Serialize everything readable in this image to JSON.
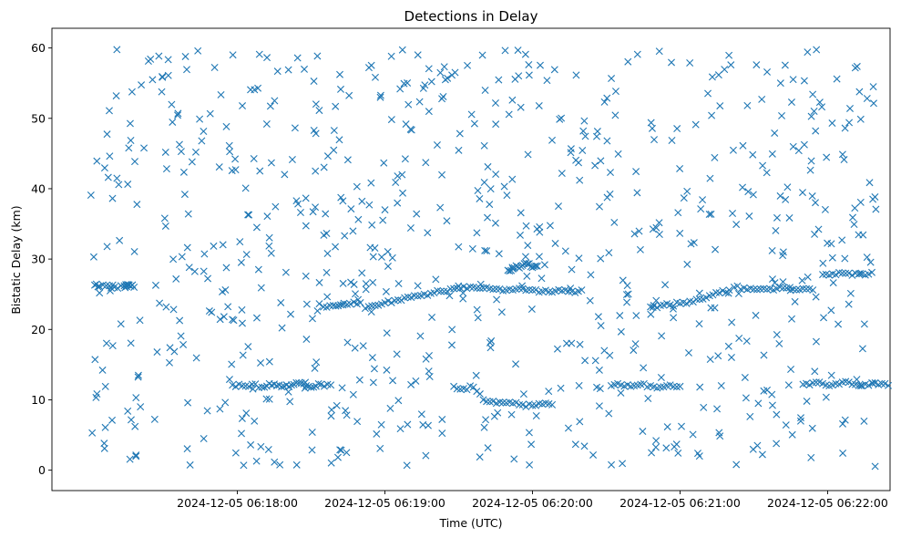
{
  "chart_data": {
    "type": "scatter",
    "title": "Detections in Delay",
    "xlabel": "Time (UTC)",
    "ylabel": "Bistatic Delay (km)",
    "marker": "x",
    "color": "#1f77b4",
    "x_axis_type": "datetime",
    "x_base_time": "2024-12-05 06:17:00",
    "xlim_seconds": [
      -15.4,
      325.4
    ],
    "ylim": [
      -2.9,
      62.8
    ],
    "y_ticks": [
      0,
      10,
      20,
      30,
      40,
      50,
      60
    ],
    "y_tick_labels": [
      "0",
      "10",
      "20",
      "30",
      "40",
      "50",
      "60"
    ],
    "x_ticks_seconds": [
      60,
      120,
      180,
      240,
      300
    ],
    "x_tick_labels": [
      "2024-12-05 06:18:00",
      "2024-12-05 06:19:00",
      "2024-12-05 06:20:00",
      "2024-12-05 06:21:00",
      "2024-12-05 06:22:00"
    ],
    "grid": false,
    "legend": "none",
    "clusters_note": "approximate clusters + uniform background noise",
    "tracks": [
      {
        "x": [
          2,
          4,
          8,
          10,
          14,
          15,
          16,
          18
        ],
        "y": [
          26.3,
          26.1,
          26.2,
          26.0,
          26.2,
          26.1,
          26.3,
          26.0
        ]
      },
      {
        "x": [
          58,
          62,
          66,
          70,
          73,
          76,
          79,
          82,
          85,
          88,
          91,
          94,
          98
        ],
        "y": [
          12.1,
          12.0,
          12.2,
          11.8,
          12.3,
          12.0,
          11.9,
          12.1,
          12.4,
          12.0,
          11.8,
          12.2,
          12.1
        ]
      },
      {
        "x": [
          95,
          99,
          102,
          106,
          110
        ],
        "y": [
          23.2,
          23.4,
          23.5,
          23.6,
          23.8
        ]
      },
      {
        "x": [
          112,
          116,
          120,
          124,
          128,
          132,
          136,
          140,
          144,
          148,
          152,
          156,
          160,
          164,
          168,
          172,
          176,
          180,
          184,
          188,
          192,
          196,
          200
        ],
        "y": [
          23.0,
          23.4,
          23.8,
          24.1,
          24.5,
          24.8,
          25.0,
          25.2,
          25.4,
          25.8,
          26.1,
          26.0,
          25.9,
          25.7,
          25.5,
          25.6,
          25.8,
          25.6,
          25.4,
          25.3,
          25.5,
          25.4,
          25.6
        ]
      },
      {
        "x": [
          148,
          152,
          156,
          160,
          164,
          168,
          172,
          176,
          180,
          184,
          188
        ],
        "y": [
          11.9,
          11.6,
          11.8,
          10.0,
          9.8,
          9.6,
          9.5,
          9.3,
          9.2,
          9.4,
          9.3
        ]
      },
      {
        "x": [
          170,
          172,
          174,
          176,
          178,
          180,
          182
        ],
        "y": [
          28.4,
          28.6,
          28.9,
          29.1,
          29.3,
          28.8,
          29.0
        ]
      },
      {
        "x": [
          212,
          216,
          220,
          224,
          228,
          232,
          236,
          240
        ],
        "y": [
          12.0,
          12.1,
          11.9,
          12.2,
          12.0,
          11.8,
          12.1,
          11.9
        ]
      },
      {
        "x": [
          228,
          232,
          236,
          240,
          244,
          248,
          252,
          256,
          260
        ],
        "y": [
          23.2,
          23.4,
          23.5,
          23.7,
          24.0,
          24.3,
          24.8,
          25.2,
          25.6
        ]
      },
      {
        "x": [
          262,
          266,
          270,
          274,
          278,
          282,
          286,
          290,
          294
        ],
        "y": [
          26.0,
          25.9,
          25.7,
          25.8,
          25.6,
          25.9,
          25.7,
          25.8,
          25.6
        ]
      },
      {
        "x": [
          290,
          294,
          298,
          302,
          306,
          310,
          314,
          318,
          322,
          326
        ],
        "y": [
          12.2,
          12.4,
          12.3,
          12.1,
          12.5,
          12.2,
          12.0,
          12.4,
          12.3,
          12.1
        ]
      },
      {
        "x": [
          298,
          302,
          306,
          310,
          314,
          318
        ],
        "y": [
          27.8,
          27.9,
          28.0,
          27.7,
          27.9,
          28.1
        ]
      }
    ],
    "background_noise": {
      "count": 760,
      "x_range": [
        0,
        320
      ],
      "y_range": [
        0.5,
        59.8
      ]
    }
  }
}
